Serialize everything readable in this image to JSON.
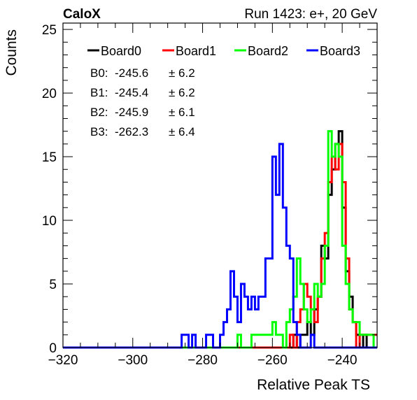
{
  "header": {
    "experiment": "CaloX",
    "run_info": "Run 1423: e+, 20 GeV"
  },
  "chart_data": {
    "type": "histogram",
    "title": "",
    "xlabel": "Relative Peak TS",
    "ylabel": "Counts",
    "xlim": [
      -320,
      -230
    ],
    "ylim": [
      0,
      25.5
    ],
    "bin_width": 1,
    "x_ticks": [
      -320,
      -300,
      -280,
      -260,
      -240
    ],
    "x_tick_labels": [
      "−320",
      "−300",
      "−280",
      "−260",
      "−240"
    ],
    "y_ticks": [
      0,
      5,
      10,
      15,
      20,
      25
    ],
    "y_tick_labels": [
      "0",
      "5",
      "10",
      "15",
      "20",
      "25"
    ],
    "legend_position": "top",
    "series": [
      {
        "name": "Board0",
        "color": "#000000",
        "bins": [
          {
            "x": -254,
            "y": 1
          },
          {
            "x": -252,
            "y": 1
          },
          {
            "x": -251,
            "y": 1
          },
          {
            "x": -250,
            "y": 2
          },
          {
            "x": -249,
            "y": 1
          },
          {
            "x": -248,
            "y": 3
          },
          {
            "x": -247,
            "y": 4
          },
          {
            "x": -246,
            "y": 8
          },
          {
            "x": -245,
            "y": 7
          },
          {
            "x": -244,
            "y": 12
          },
          {
            "x": -243,
            "y": 14
          },
          {
            "x": -242,
            "y": 16
          },
          {
            "x": -241,
            "y": 17
          },
          {
            "x": -240,
            "y": 11
          },
          {
            "x": -239,
            "y": 6
          },
          {
            "x": -238,
            "y": 4
          },
          {
            "x": -237,
            "y": 2
          },
          {
            "x": -236,
            "y": 1
          },
          {
            "x": -234,
            "y": 1
          }
        ]
      },
      {
        "name": "Board1",
        "color": "#ff0000",
        "bins": [
          {
            "x": -255,
            "y": 1
          },
          {
            "x": -253,
            "y": 2
          },
          {
            "x": -252,
            "y": 3
          },
          {
            "x": -251,
            "y": 5
          },
          {
            "x": -250,
            "y": 4
          },
          {
            "x": -249,
            "y": 3
          },
          {
            "x": -248,
            "y": 2
          },
          {
            "x": -247,
            "y": 4
          },
          {
            "x": -246,
            "y": 7
          },
          {
            "x": -245,
            "y": 9
          },
          {
            "x": -244,
            "y": 13
          },
          {
            "x": -243,
            "y": 15
          },
          {
            "x": -242,
            "y": 14
          },
          {
            "x": -241,
            "y": 16
          },
          {
            "x": -240,
            "y": 13
          },
          {
            "x": -239,
            "y": 7
          },
          {
            "x": -238,
            "y": 3
          },
          {
            "x": -237,
            "y": 2
          },
          {
            "x": -235,
            "y": 1
          },
          {
            "x": -234,
            "y": 1
          },
          {
            "x": -233,
            "y": 1
          },
          {
            "x": -232,
            "y": 1
          },
          {
            "x": -231,
            "y": 1
          }
        ]
      },
      {
        "name": "Board2",
        "color": "#00ff00",
        "bins": [
          {
            "x": -270,
            "y": 1
          },
          {
            "x": -266,
            "y": 1
          },
          {
            "x": -265,
            "y": 1
          },
          {
            "x": -264,
            "y": 1
          },
          {
            "x": -263,
            "y": 1
          },
          {
            "x": -262,
            "y": 1
          },
          {
            "x": -261,
            "y": 1
          },
          {
            "x": -260,
            "y": 2
          },
          {
            "x": -259,
            "y": 1
          },
          {
            "x": -258,
            "y": 1
          },
          {
            "x": -256,
            "y": 2
          },
          {
            "x": -255,
            "y": 3
          },
          {
            "x": -254,
            "y": 4
          },
          {
            "x": -253,
            "y": 7
          },
          {
            "x": -252,
            "y": 5
          },
          {
            "x": -251,
            "y": 3
          },
          {
            "x": -250,
            "y": 2
          },
          {
            "x": -249,
            "y": 3
          },
          {
            "x": -248,
            "y": 5
          },
          {
            "x": -247,
            "y": 4
          },
          {
            "x": -246,
            "y": 5
          },
          {
            "x": -245,
            "y": 8
          },
          {
            "x": -244,
            "y": 17
          },
          {
            "x": -243,
            "y": 15
          },
          {
            "x": -242,
            "y": 16
          },
          {
            "x": -241,
            "y": 15
          },
          {
            "x": -240,
            "y": 8
          },
          {
            "x": -239,
            "y": 5
          },
          {
            "x": -238,
            "y": 3
          },
          {
            "x": -237,
            "y": 2
          },
          {
            "x": -236,
            "y": 2
          },
          {
            "x": -235,
            "y": 1
          },
          {
            "x": -234,
            "y": 1
          },
          {
            "x": -233,
            "y": 1
          },
          {
            "x": -232,
            "y": 1
          }
        ]
      },
      {
        "name": "Board3",
        "color": "#0000ff",
        "bins": [
          {
            "x": -286,
            "y": 1
          },
          {
            "x": -285,
            "y": 1
          },
          {
            "x": -283,
            "y": 1
          },
          {
            "x": -279,
            "y": 1
          },
          {
            "x": -278,
            "y": 1
          },
          {
            "x": -275,
            "y": 1
          },
          {
            "x": -274,
            "y": 2
          },
          {
            "x": -273,
            "y": 3
          },
          {
            "x": -272,
            "y": 6
          },
          {
            "x": -271,
            "y": 4
          },
          {
            "x": -270,
            "y": 2
          },
          {
            "x": -269,
            "y": 5
          },
          {
            "x": -268,
            "y": 4
          },
          {
            "x": -267,
            "y": 3
          },
          {
            "x": -266,
            "y": 4
          },
          {
            "x": -265,
            "y": 3
          },
          {
            "x": -264,
            "y": 4
          },
          {
            "x": -263,
            "y": 4
          },
          {
            "x": -262,
            "y": 7
          },
          {
            "x": -261,
            "y": 7
          },
          {
            "x": -260,
            "y": 15
          },
          {
            "x": -259,
            "y": 12
          },
          {
            "x": -258,
            "y": 16
          },
          {
            "x": -257,
            "y": 11
          },
          {
            "x": -256,
            "y": 8
          },
          {
            "x": -255,
            "y": 7
          },
          {
            "x": -254,
            "y": 2
          },
          {
            "x": -253,
            "y": 1
          },
          {
            "x": -249,
            "y": 1
          }
        ]
      }
    ],
    "annotations": [
      {
        "label": "B0:",
        "mean": "-245.6",
        "pm": "± 6.2"
      },
      {
        "label": "B1:",
        "mean": "-245.4",
        "pm": "± 6.2"
      },
      {
        "label": "B2:",
        "mean": "-245.9",
        "pm": "± 6.1"
      },
      {
        "label": "B3:",
        "mean": "-262.3",
        "pm": "± 6.4"
      }
    ]
  }
}
